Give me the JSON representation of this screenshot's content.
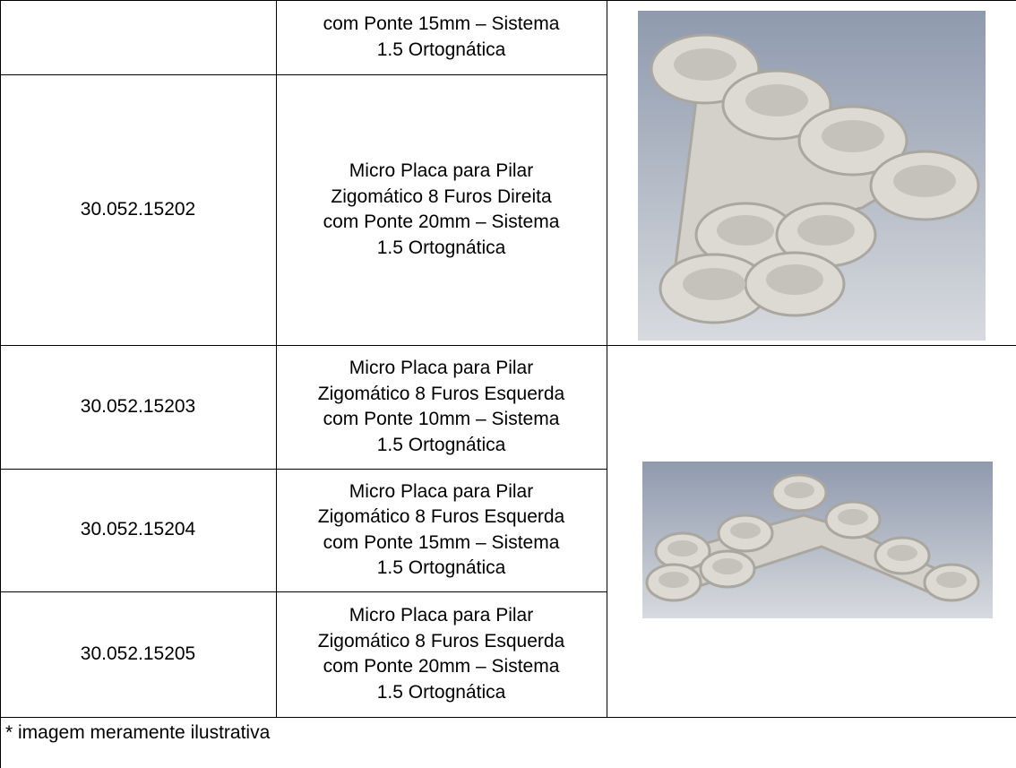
{
  "table": {
    "rows": [
      {
        "description": [
          "com Ponte 15mm – Sistema",
          "1.5 Ortognática"
        ]
      },
      {
        "code": "30.052.15202",
        "description": [
          "Micro Placa para Pilar",
          "Zigomático 8 Furos Direita",
          "com Ponte 20mm – Sistema",
          "1.5 Ortognática"
        ]
      },
      {
        "code": "30.052.15203",
        "description": [
          "Micro Placa para Pilar",
          "Zigomático 8 Furos Esquerda",
          "com Ponte 10mm – Sistema",
          "1.5 Ortognática"
        ]
      },
      {
        "code": "30.052.15204",
        "description": [
          "Micro Placa para Pilar",
          "Zigomático 8 Furos Esquerda",
          "com Ponte 15mm – Sistema",
          "1.5 Ortognática"
        ]
      },
      {
        "code": "30.052.15205",
        "description": [
          "Micro Placa para Pilar",
          "Zigomático 8 Furos Esquerda",
          "com Ponte 20mm – Sistema",
          "1.5 Ortognática"
        ]
      }
    ],
    "footnote": "* imagem meramente ilustrativa"
  }
}
